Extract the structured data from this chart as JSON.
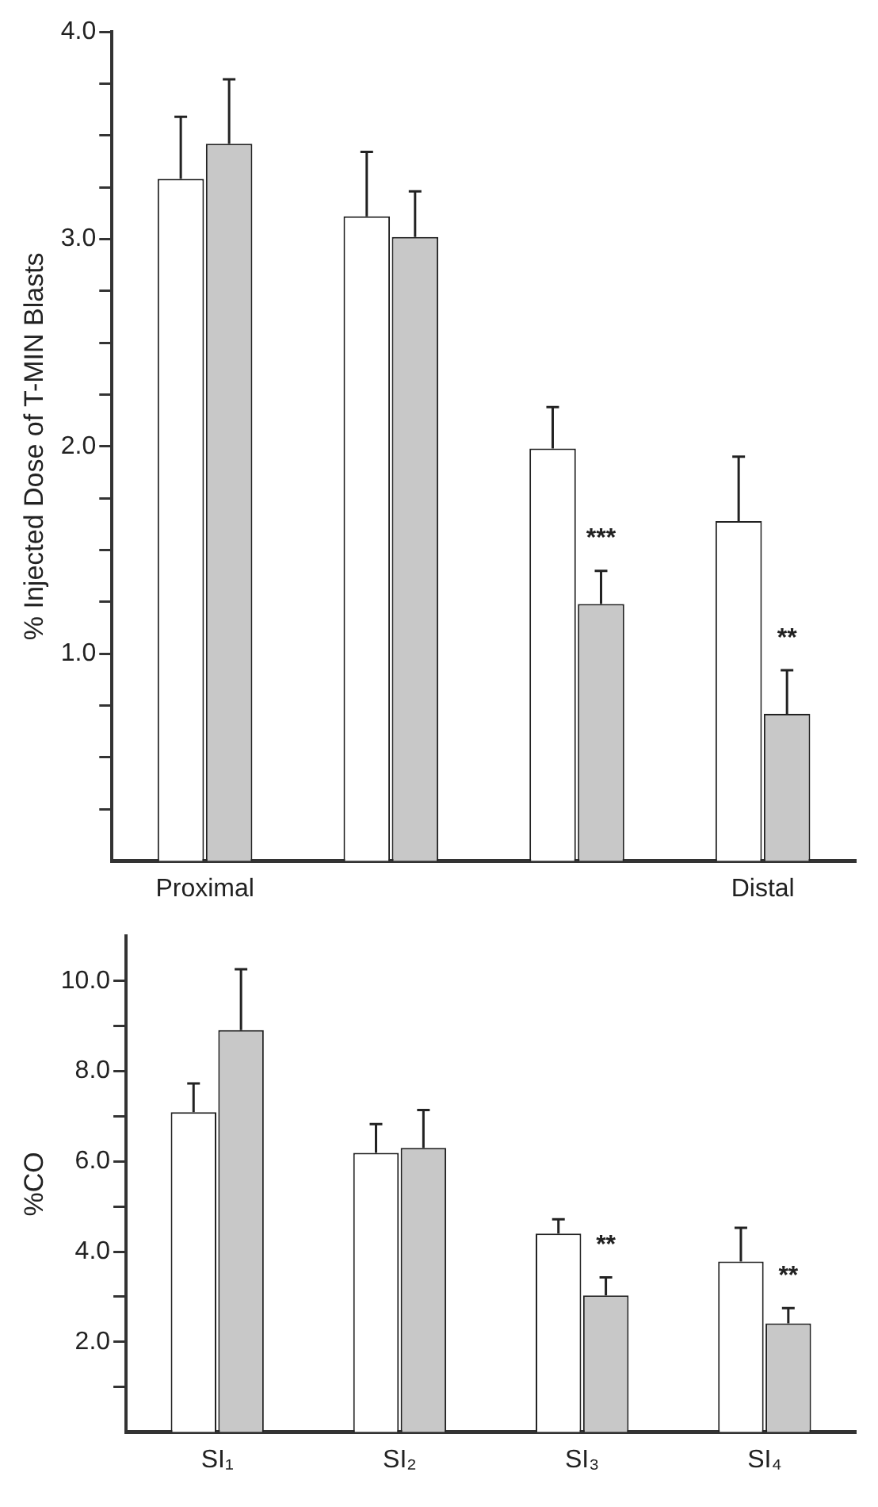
{
  "chart_data": [
    {
      "type": "bar",
      "ylabel": "% Injected Dose of T-MIN Blasts",
      "categories": [
        "Proximal",
        null,
        null,
        "Distal"
      ],
      "series": [
        {
          "color": "#ffffff",
          "values": [
            3.29,
            3.11,
            1.99,
            1.64
          ],
          "errors": [
            [
              3.29,
              3.59
            ],
            [
              3.11,
              3.42
            ],
            [
              1.99,
              2.19
            ],
            [
              1.64,
              1.95
            ]
          ]
        },
        {
          "color": "#c8c8c8",
          "values": [
            3.46,
            3.01,
            1.24,
            0.71
          ],
          "errors": [
            [
              3.46,
              3.77
            ],
            [
              3.01,
              3.23
            ],
            [
              1.24,
              1.4
            ],
            [
              0.71,
              0.92
            ]
          ],
          "value_labels": [
            null,
            null,
            "***",
            "**"
          ]
        }
      ],
      "ylim": [
        0,
        4
      ],
      "yticks": [
        {
          "value": 0.25,
          "label": null
        },
        {
          "value": 0.5,
          "label": null
        },
        {
          "value": 0.75,
          "label": null
        },
        {
          "value": 1,
          "label": "1.0"
        },
        {
          "value": 1.25,
          "label": null
        },
        {
          "value": 1.5,
          "label": null
        },
        {
          "value": 1.75,
          "label": null
        },
        {
          "value": 2,
          "label": "2.0"
        },
        {
          "value": 2.25,
          "label": null
        },
        {
          "value": 2.5,
          "label": null
        },
        {
          "value": 2.75,
          "label": null
        },
        {
          "value": 3,
          "label": "3.0"
        },
        {
          "value": 3.25,
          "label": null
        },
        {
          "value": 3.5,
          "label": null
        },
        {
          "value": 3.75,
          "label": null
        },
        {
          "value": 4,
          "label": "4.0"
        }
      ],
      "grid": false,
      "legend": false
    },
    {
      "type": "bar",
      "ylabel": "%CO",
      "categories": [
        "SI₁",
        "SI₂",
        "SI₃",
        "SI₄"
      ],
      "series": [
        {
          "color": "#ffffff",
          "values": [
            7.09,
            6.19,
            4.4,
            3.78
          ],
          "errors": [
            [
              7.09,
              7.73
            ],
            [
              6.19,
              6.83
            ],
            [
              4.4,
              4.72
            ],
            [
              3.78,
              4.53
            ]
          ]
        },
        {
          "color": "#c8c8c8",
          "values": [
            8.91,
            6.3,
            3.03,
            2.41
          ],
          "errors": [
            [
              8.91,
              10.26
            ],
            [
              6.3,
              7.14
            ],
            [
              3.03,
              3.43
            ],
            [
              2.41,
              2.75
            ]
          ],
          "value_labels": [
            null,
            null,
            "**",
            "**"
          ]
        }
      ],
      "ylim": [
        0,
        11
      ],
      "yticks": [
        {
          "value": 1,
          "label": null
        },
        {
          "value": 2,
          "label": "2.0"
        },
        {
          "value": 3,
          "label": null
        },
        {
          "value": 4,
          "label": "4.0"
        },
        {
          "value": 5,
          "label": null
        },
        {
          "value": 6,
          "label": "6.0"
        },
        {
          "value": 7,
          "label": null
        },
        {
          "value": 8,
          "label": "8.0"
        },
        {
          "value": 9,
          "label": null
        },
        {
          "value": 10,
          "label": "10.0"
        }
      ],
      "grid": false,
      "legend": false
    }
  ]
}
